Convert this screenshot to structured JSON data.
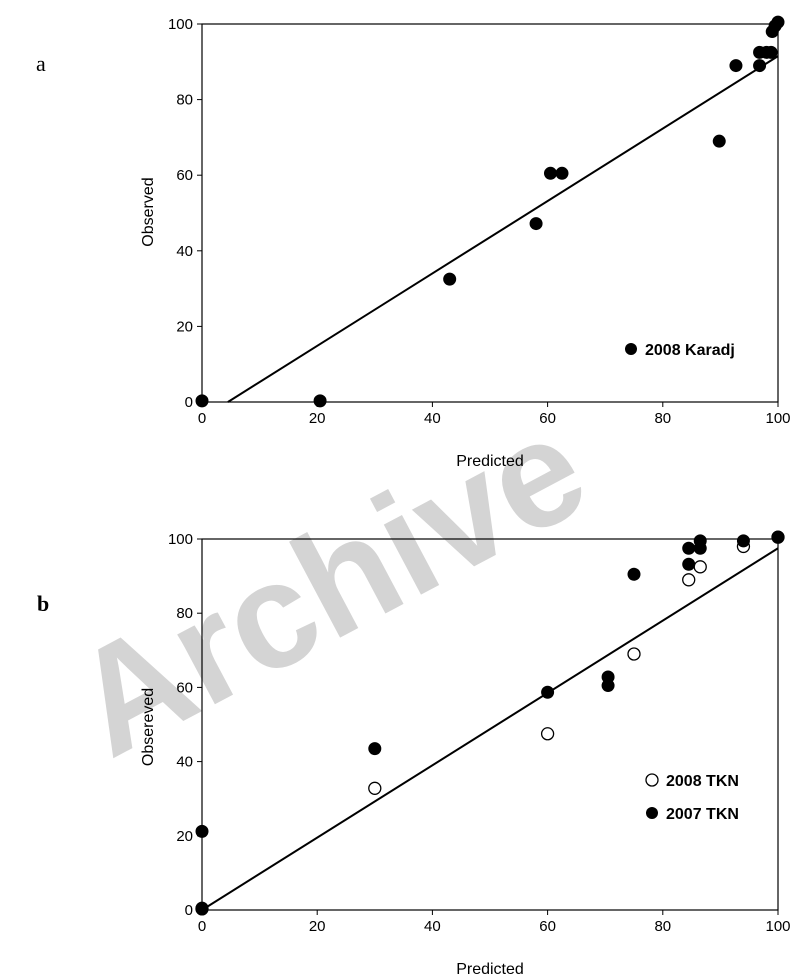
{
  "watermark": "Archive",
  "chart_data": [
    {
      "type": "scatter",
      "panel_label": "a",
      "xlabel": "Predicted",
      "ylabel": "Observed",
      "xlim": [
        0,
        100
      ],
      "ylim": [
        0,
        100
      ],
      "xticks": [
        "0",
        "20",
        "40",
        "60",
        "80",
        "100"
      ],
      "yticks": [
        "0",
        "20",
        "40",
        "60",
        "80",
        "100"
      ],
      "grid": false,
      "legend_position": "bottom-right",
      "series": [
        {
          "name": "2008 Karadj",
          "marker": "filled-circle",
          "color": "#000000",
          "points": [
            [
              0,
              0.3
            ],
            [
              20.5,
              0.3
            ],
            [
              43,
              32.5
            ],
            [
              58,
              47.2
            ],
            [
              60.5,
              60.5
            ],
            [
              62.5,
              60.5
            ],
            [
              89.8,
              69
            ],
            [
              92.7,
              89
            ],
            [
              96.8,
              92.5
            ],
            [
              96.8,
              89
            ],
            [
              98,
              92.5
            ],
            [
              98.8,
              92.5
            ],
            [
              99,
              98
            ],
            [
              99.5,
              99.5
            ],
            [
              100,
              100.5
            ]
          ]
        }
      ],
      "trendline": {
        "x": [
          4.5,
          100
        ],
        "y": [
          0,
          91.5
        ]
      }
    },
    {
      "type": "scatter",
      "panel_label": "b",
      "xlabel": "Predicted",
      "ylabel": "Obsereved",
      "xlim": [
        0,
        100
      ],
      "ylim": [
        0,
        100
      ],
      "xticks": [
        "0",
        "20",
        "40",
        "60",
        "80",
        "100"
      ],
      "yticks": [
        "0",
        "20",
        "40",
        "60",
        "80",
        "100"
      ],
      "grid": false,
      "legend_position": "bottom-right",
      "series": [
        {
          "name": "2008 TKN",
          "marker": "open-circle",
          "color": "#000000",
          "points": [
            [
              0,
              0.3
            ],
            [
              30,
              32.8
            ],
            [
              60,
              47.5
            ],
            [
              75,
              69
            ],
            [
              84.5,
              89
            ],
            [
              86.5,
              92.5
            ],
            [
              94,
              98
            ],
            [
              100,
              100.5
            ]
          ]
        },
        {
          "name": "2007 TKN",
          "marker": "filled-circle",
          "color": "#000000",
          "points": [
            [
              0,
              21.2
            ],
            [
              0,
              0.5
            ],
            [
              30,
              43.5
            ],
            [
              60,
              58.7
            ],
            [
              70.5,
              62.8
            ],
            [
              70.5,
              60.5
            ],
            [
              75,
              90.5
            ],
            [
              84.5,
              93.2
            ],
            [
              84.5,
              97.5
            ],
            [
              86.5,
              97.5
            ],
            [
              86.5,
              99.5
            ],
            [
              94,
              99.5
            ],
            [
              100,
              100.5
            ]
          ]
        }
      ],
      "trendline": {
        "x": [
          0,
          100
        ],
        "y": [
          0,
          97.5
        ]
      }
    }
  ]
}
